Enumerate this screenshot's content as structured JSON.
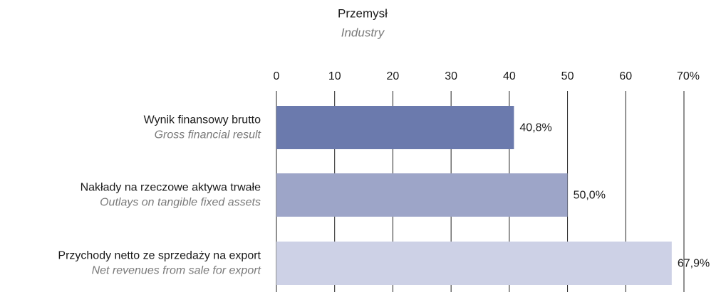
{
  "chart_data": {
    "type": "bar",
    "orientation": "horizontal",
    "title": "Przemysł",
    "subtitle": "Industry",
    "categories": [
      "Wynik finansowy brutto",
      "Nakłady na rzeczowe aktywa trwałe",
      "Przychody netto ze sprzedaży na export"
    ],
    "category_translations": [
      "Gross financial result",
      "Outlays on tangible fixed assets",
      "Net  revenues from sale for export"
    ],
    "values": [
      40.8,
      50.0,
      67.9
    ],
    "value_labels": [
      "40,8%",
      "50,0%",
      "67,9%"
    ],
    "colors": [
      "#6b7aad",
      "#9da5c8",
      "#cdd1e6"
    ],
    "xlim": [
      0,
      70
    ],
    "xticks": [
      0,
      10,
      20,
      30,
      40,
      50,
      60,
      {
        "value": 70,
        "label": "70%"
      }
    ],
    "grid": true
  }
}
